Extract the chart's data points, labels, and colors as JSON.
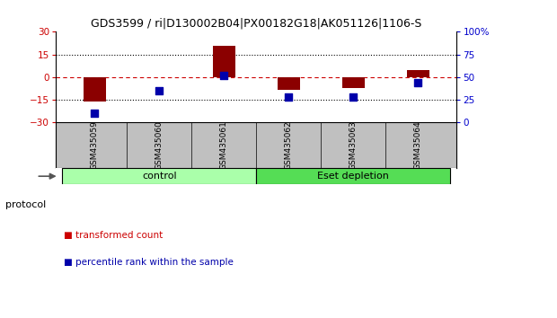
{
  "title": "GDS3599 / ri|D130002B04|PX00182G18|AK051126|1106-S",
  "samples": [
    "GSM435059",
    "GSM435060",
    "GSM435061",
    "GSM435062",
    "GSM435063",
    "GSM435064"
  ],
  "transformed_count": [
    -16.5,
    -0.5,
    20.5,
    -8.5,
    -7.5,
    4.5
  ],
  "percentile_rank": [
    10,
    35,
    52,
    28,
    28,
    44
  ],
  "ylim_left": [
    -30,
    30
  ],
  "ylim_right": [
    0,
    100
  ],
  "yticks_left": [
    -30,
    -15,
    0,
    15,
    30
  ],
  "yticks_right": [
    0,
    25,
    50,
    75,
    100
  ],
  "ytick_labels_right": [
    "0",
    "25",
    "50",
    "75",
    "100%"
  ],
  "hlines_dotted": [
    15,
    -15
  ],
  "red_hline": 0,
  "bar_color": "#8B0000",
  "dot_color": "#0000AA",
  "left_axis_color": "#CC0000",
  "right_axis_color": "#0000CC",
  "protocol_groups": [
    {
      "label": "control",
      "start": 0,
      "end": 2,
      "color": "#AAFFAA"
    },
    {
      "label": "Eset depletion",
      "start": 3,
      "end": 5,
      "color": "#55DD55"
    }
  ],
  "protocol_label": "protocol",
  "legend_items": [
    {
      "label": "transformed count",
      "color": "#CC0000"
    },
    {
      "label": "percentile rank within the sample",
      "color": "#0000AA"
    }
  ],
  "bar_width": 0.35,
  "dot_size": 40,
  "sample_label_bg": "#C0C0C0",
  "background_color": "#ffffff"
}
